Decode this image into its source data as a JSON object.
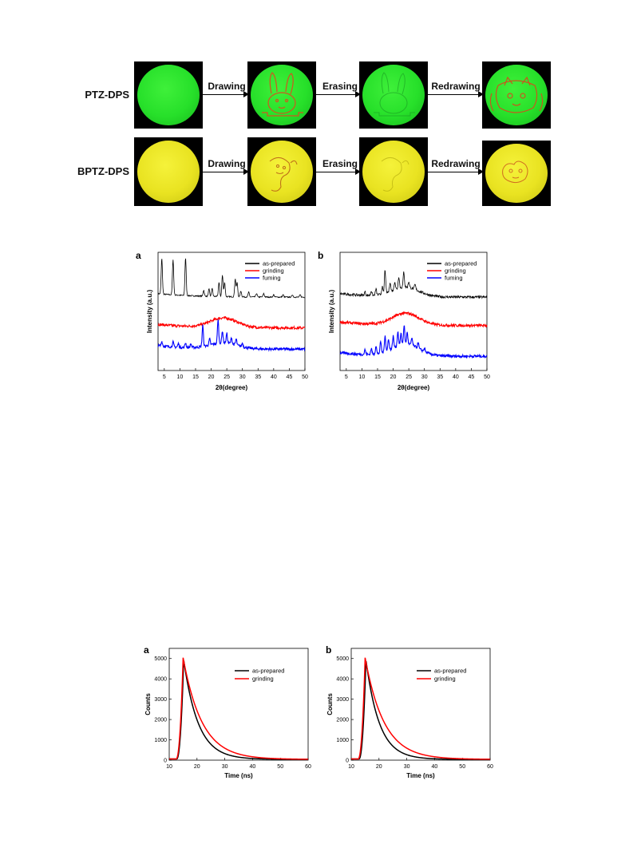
{
  "figure_top": {
    "rows": [
      {
        "label": "PTZ-DPS",
        "theme": "green"
      },
      {
        "label": "BPTZ-DPS",
        "theme": "yellow"
      }
    ],
    "steps": [
      "Drawing",
      "Erasing",
      "Redrawing"
    ]
  },
  "chart_data": [
    {
      "type": "line",
      "panel": "a",
      "xlabel": "2θ(degree)",
      "ylabel": "Intensity (a.u.)",
      "xlim": [
        3,
        50
      ],
      "xticks": [
        5,
        10,
        15,
        20,
        25,
        30,
        35,
        40,
        45,
        50
      ],
      "legend": "top-right",
      "series": [
        {
          "name": "as-prepared",
          "color": "#000000",
          "baseline": 0.62,
          "peaks": [
            [
              4.2,
              0.3
            ],
            [
              7.8,
              0.3
            ],
            [
              11.8,
              0.32
            ],
            [
              17.6,
              0.05
            ],
            [
              19.3,
              0.06
            ],
            [
              20.3,
              0.07
            ],
            [
              22.5,
              0.12
            ],
            [
              23.6,
              0.18
            ],
            [
              24.3,
              0.12
            ],
            [
              27.7,
              0.15
            ],
            [
              28.3,
              0.12
            ],
            [
              29.5,
              0.05
            ],
            [
              32,
              0.04
            ],
            [
              34.5,
              0.03
            ],
            [
              36.8,
              0.03
            ],
            [
              40,
              0.02
            ],
            [
              43,
              0.02
            ],
            [
              46,
              0.02
            ],
            [
              48.5,
              0.02
            ]
          ],
          "hump": 0.0
        },
        {
          "name": "grinding",
          "color": "#ff0000",
          "baseline": 0.36,
          "peaks": [],
          "hump": 0.08
        },
        {
          "name": "fuming",
          "color": "#0000ff",
          "baseline": 0.18,
          "peaks": [
            [
              4.2,
              0.04
            ],
            [
              7.8,
              0.04
            ],
            [
              9.5,
              0.03
            ],
            [
              11.8,
              0.04
            ],
            [
              13.5,
              0.03
            ],
            [
              17.3,
              0.18
            ],
            [
              19.5,
              0.05
            ],
            [
              22.2,
              0.2
            ],
            [
              23.6,
              0.1
            ],
            [
              25,
              0.08
            ],
            [
              26.5,
              0.05
            ],
            [
              28,
              0.05
            ],
            [
              30,
              0.03
            ]
          ],
          "hump": 0.05
        }
      ]
    },
    {
      "type": "line",
      "panel": "b",
      "xlabel": "2θ(degree)",
      "ylabel": "Intensity (a.u.)",
      "xlim": [
        3,
        50
      ],
      "xticks": [
        5,
        10,
        15,
        20,
        25,
        30,
        35,
        40,
        45,
        50
      ],
      "legend": "top-right",
      "series": [
        {
          "name": "as-prepared",
          "color": "#000000",
          "baseline": 0.62,
          "peaks": [
            [
              11,
              0.03
            ],
            [
              13,
              0.04
            ],
            [
              14.5,
              0.05
            ],
            [
              16.5,
              0.06
            ],
            [
              17.4,
              0.2
            ],
            [
              19,
              0.08
            ],
            [
              20.5,
              0.07
            ],
            [
              21.8,
              0.1
            ],
            [
              23.4,
              0.13
            ],
            [
              25,
              0.05
            ],
            [
              27,
              0.04
            ]
          ],
          "hump": 0.08
        },
        {
          "name": "grinding",
          "color": "#ff0000",
          "baseline": 0.38,
          "peaks": [],
          "hump": 0.1
        },
        {
          "name": "fuming",
          "color": "#0000ff",
          "baseline": 0.12,
          "peaks": [
            [
              11,
              0.04
            ],
            [
              13,
              0.05
            ],
            [
              14.5,
              0.07
            ],
            [
              16,
              0.1
            ],
            [
              17.4,
              0.14
            ],
            [
              18.5,
              0.1
            ],
            [
              20,
              0.1
            ],
            [
              21.5,
              0.12
            ],
            [
              22.5,
              0.09
            ],
            [
              23.5,
              0.16
            ],
            [
              24.5,
              0.1
            ],
            [
              26,
              0.06
            ],
            [
              28,
              0.05
            ],
            [
              30,
              0.03
            ]
          ],
          "hump": 0.1
        }
      ]
    },
    {
      "type": "line",
      "panel": "a",
      "xlabel": "Time (ns)",
      "ylabel": "Counts",
      "xlim": [
        10,
        60
      ],
      "ylim": [
        0,
        5500
      ],
      "xticks": [
        10,
        20,
        30,
        40,
        50,
        60
      ],
      "yticks": [
        0,
        1000,
        2000,
        3000,
        4000,
        5000
      ],
      "legend": "top-right",
      "series": [
        {
          "name": "as-prepared",
          "color": "#000000",
          "peak_x": 15.2,
          "peak_y": 4900,
          "tau": 5.2
        },
        {
          "name": "grinding",
          "color": "#ff0000",
          "peak_x": 15.0,
          "peak_y": 5000,
          "tau": 6.8
        }
      ]
    },
    {
      "type": "line",
      "panel": "b",
      "xlabel": "Time (ns)",
      "ylabel": "Counts",
      "xlim": [
        10,
        60
      ],
      "ylim": [
        0,
        5500
      ],
      "xticks": [
        10,
        20,
        30,
        40,
        50,
        60
      ],
      "yticks": [
        0,
        1000,
        2000,
        3000,
        4000,
        5000
      ],
      "legend": "top-right",
      "series": [
        {
          "name": "as-prepared",
          "color": "#000000",
          "peak_x": 15.3,
          "peak_y": 4900,
          "tau": 4.8
        },
        {
          "name": "grinding",
          "color": "#ff0000",
          "peak_x": 15.0,
          "peak_y": 5000,
          "tau": 6.8
        }
      ]
    }
  ]
}
